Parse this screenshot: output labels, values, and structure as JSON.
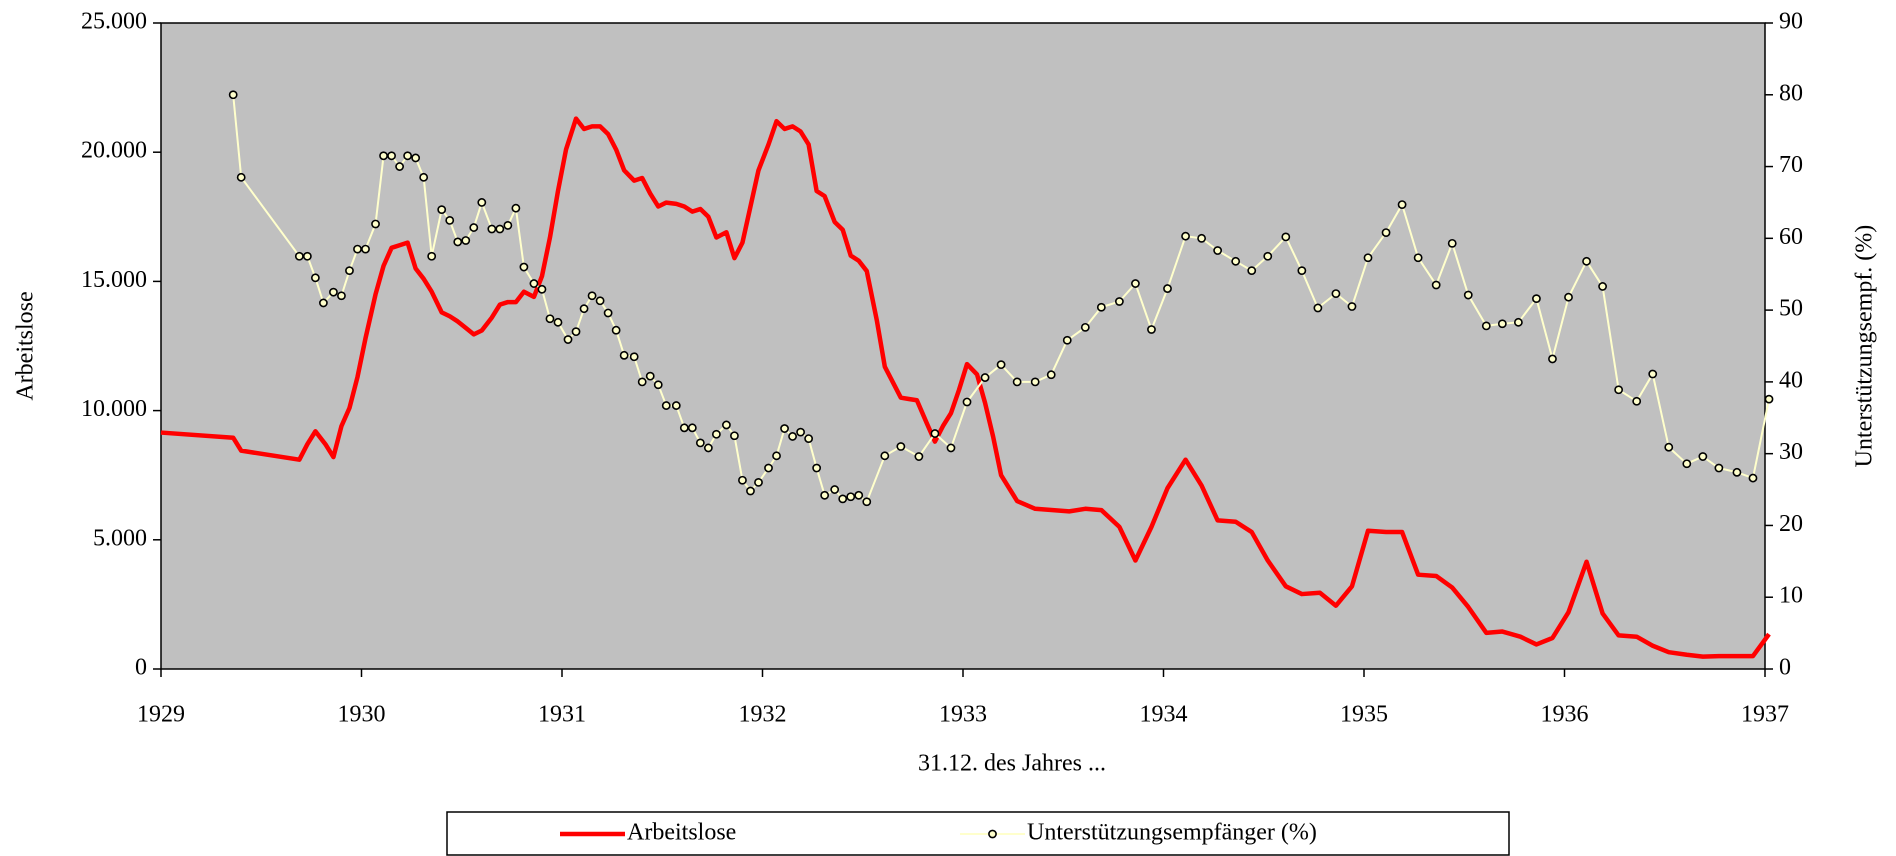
{
  "chart_data": {
    "type": "line",
    "x_label": "31.12. des Jahres ...",
    "y_label": "Arbeitslose",
    "y2_label": "Unterstützungsempf. (%)",
    "xlim": [
      1929,
      1937
    ],
    "xticks": [
      1929,
      1930,
      1931,
      1932,
      1933,
      1934,
      1935,
      1936,
      1937
    ],
    "ylim": [
      0,
      25000
    ],
    "yticks": [
      0,
      {
        "value": 5000,
        "label": "5.000"
      },
      {
        "value": 10000,
        "label": "10.000"
      },
      {
        "value": 15000,
        "label": "15.000"
      },
      {
        "value": 20000,
        "label": "20.000"
      },
      {
        "value": 25000,
        "label": "25.000"
      }
    ],
    "y2lim": [
      0,
      90
    ],
    "y2ticks": [
      0,
      10,
      20,
      30,
      40,
      50,
      60,
      70,
      80,
      90
    ],
    "background": "#c0c0c0",
    "series": [
      {
        "name": "Arbeitslose",
        "color": "#ff0000",
        "axis": "y",
        "markers": false,
        "x": [
          1929.0,
          1929.36,
          1929.4,
          1929.69,
          1929.73,
          1929.77,
          1929.82,
          1929.86,
          1929.9,
          1929.94,
          1929.98,
          1930.02,
          1930.07,
          1930.11,
          1930.15,
          1930.19,
          1930.23,
          1930.27,
          1930.31,
          1930.35,
          1930.4,
          1930.44,
          1930.48,
          1930.52,
          1930.56,
          1930.6,
          1930.65,
          1930.69,
          1930.73,
          1930.77,
          1930.81,
          1930.86,
          1930.9,
          1930.94,
          1930.98,
          1931.02,
          1931.07,
          1931.11,
          1931.15,
          1931.19,
          1931.23,
          1931.27,
          1931.31,
          1931.36,
          1931.4,
          1931.44,
          1931.48,
          1931.52,
          1931.57,
          1931.61,
          1931.65,
          1931.69,
          1931.73,
          1931.77,
          1931.82,
          1931.86,
          1931.9,
          1931.94,
          1931.98,
          1932.03,
          1932.07,
          1932.11,
          1932.15,
          1932.19,
          1932.23,
          1932.27,
          1932.31,
          1932.36,
          1932.4,
          1932.44,
          1932.48,
          1932.52,
          1932.57,
          1932.61,
          1932.65,
          1932.69,
          1932.73,
          1932.77,
          1932.82,
          1932.86,
          1932.9,
          1932.94,
          1932.98,
          1933.02,
          1933.07,
          1933.11,
          1933.15,
          1933.19,
          1933.27,
          1933.36,
          1933.53,
          1933.61,
          1933.69,
          1933.78,
          1933.86,
          1933.94,
          1934.02,
          1934.11,
          1934.19,
          1934.27,
          1934.36,
          1934.44,
          1934.52,
          1934.61,
          1934.69,
          1934.78,
          1934.86,
          1934.94,
          1935.02,
          1935.11,
          1935.19,
          1935.27,
          1935.36,
          1935.44,
          1935.52,
          1935.61,
          1935.69,
          1935.78,
          1935.86,
          1935.94,
          1936.02,
          1936.11,
          1936.19,
          1936.27,
          1936.36,
          1936.44,
          1936.52,
          1936.61,
          1936.69,
          1936.77,
          1936.86,
          1936.94,
          1937.02
        ],
        "values": [
          9150,
          8950,
          8450,
          8100,
          8700,
          9200,
          8700,
          8200,
          9400,
          10100,
          11300,
          12800,
          14500,
          15600,
          16300,
          16400,
          16500,
          15500,
          15100,
          14600,
          13800,
          13650,
          13450,
          13200,
          12950,
          13100,
          13600,
          14100,
          14200,
          14200,
          14600,
          14400,
          15200,
          16700,
          18500,
          20100,
          21300,
          20900,
          21000,
          21000,
          20700,
          20100,
          19300,
          18900,
          19000,
          18400,
          17900,
          18050,
          18000,
          17900,
          17700,
          17800,
          17500,
          16700,
          16900,
          15900,
          16500,
          17900,
          19300,
          20300,
          21200,
          20900,
          21000,
          20800,
          20300,
          18500,
          18300,
          17300,
          17000,
          16000,
          15800,
          15400,
          13500,
          11700,
          11100,
          10500,
          10450,
          10400,
          9500,
          8800,
          9400,
          9900,
          10800,
          11800,
          11400,
          10300,
          9000,
          7500,
          6500,
          6200,
          6100,
          6200,
          6150,
          5500,
          4200,
          5500,
          7000,
          8100,
          7100,
          5750,
          5700,
          5300,
          4200,
          3200,
          2900,
          2950,
          2450,
          3200,
          5350,
          5300,
          5300,
          3650,
          3600,
          3150,
          2400,
          1400,
          1450,
          1250,
          950,
          1200,
          2200,
          4150,
          2150,
          1300,
          1250,
          900,
          650,
          550,
          480,
          500,
          500,
          500,
          1350
        ]
      },
      {
        "name": "Unterstützungsempfänger (%)",
        "color": "#ffffcc",
        "axis": "y2",
        "markers": true,
        "x": [
          1929.36,
          1929.4,
          1929.69,
          1929.73,
          1929.77,
          1929.81,
          1929.86,
          1929.9,
          1929.94,
          1929.98,
          1930.02,
          1930.07,
          1930.11,
          1930.15,
          1930.19,
          1930.23,
          1930.27,
          1930.31,
          1930.35,
          1930.4,
          1930.44,
          1930.48,
          1930.52,
          1930.56,
          1930.6,
          1930.65,
          1930.69,
          1930.73,
          1930.77,
          1930.81,
          1930.86,
          1930.9,
          1930.94,
          1930.98,
          1931.03,
          1931.07,
          1931.11,
          1931.15,
          1931.19,
          1931.23,
          1931.27,
          1931.31,
          1931.36,
          1931.4,
          1931.44,
          1931.48,
          1931.52,
          1931.57,
          1931.61,
          1931.65,
          1931.69,
          1931.73,
          1931.77,
          1931.82,
          1931.86,
          1931.9,
          1931.94,
          1931.98,
          1932.03,
          1932.07,
          1932.11,
          1932.15,
          1932.19,
          1932.23,
          1932.27,
          1932.31,
          1932.36,
          1932.4,
          1932.44,
          1932.48,
          1932.52,
          1932.61,
          1932.69,
          1932.78,
          1932.86,
          1932.94,
          1933.02,
          1933.11,
          1933.19,
          1933.27,
          1933.36,
          1933.44,
          1933.52,
          1933.61,
          1933.69,
          1933.78,
          1933.86,
          1933.94,
          1934.02,
          1934.11,
          1934.19,
          1934.27,
          1934.36,
          1934.44,
          1934.52,
          1934.61,
          1934.69,
          1934.77,
          1934.86,
          1934.94,
          1935.02,
          1935.11,
          1935.19,
          1935.27,
          1935.36,
          1935.44,
          1935.52,
          1935.61,
          1935.69,
          1935.77,
          1935.86,
          1935.94,
          1936.02,
          1936.11,
          1936.19,
          1936.27,
          1936.36,
          1936.44,
          1936.52,
          1936.61,
          1936.69,
          1936.77,
          1936.86,
          1936.94,
          1937.02
        ],
        "values": [
          80,
          68.5,
          57.5,
          57.5,
          54.5,
          51,
          52.5,
          52,
          55.5,
          58.5,
          58.5,
          62,
          71.5,
          71.5,
          70,
          71.5,
          71.2,
          68.5,
          57.5,
          64,
          62.5,
          59.5,
          59.7,
          61.5,
          65,
          61.3,
          61.3,
          61.8,
          64.2,
          56,
          53.7,
          52.9,
          48.8,
          48.3,
          45.9,
          47,
          50.2,
          52,
          51.3,
          49.6,
          47.2,
          43.7,
          43.5,
          40,
          40.8,
          39.6,
          36.7,
          36.7,
          33.6,
          33.6,
          31.5,
          30.8,
          32.7,
          34,
          32.5,
          26.3,
          24.8,
          26,
          28,
          29.7,
          33.5,
          32.4,
          33,
          32.1,
          28,
          24.2,
          25,
          23.7,
          24,
          24.2,
          23.3,
          29.7,
          31,
          29.6,
          32.8,
          30.8,
          37.2,
          40.6,
          42.4,
          40,
          40,
          41,
          45.8,
          47.6,
          50.4,
          51.2,
          53.7,
          47.3,
          53,
          60.3,
          60,
          58.3,
          56.8,
          55.5,
          57.5,
          60.2,
          55.5,
          50.3,
          52.3,
          50.5,
          57.3,
          60.8,
          64.7,
          57.3,
          53.5,
          59.3,
          52.1,
          47.8,
          48.1,
          48.3,
          51.6,
          43.2,
          51.8,
          56.8,
          53.3,
          38.9,
          37.3,
          41.1,
          30.9,
          28.6,
          29.6,
          28,
          27.4,
          26.6,
          37.6
        ]
      }
    ]
  }
}
